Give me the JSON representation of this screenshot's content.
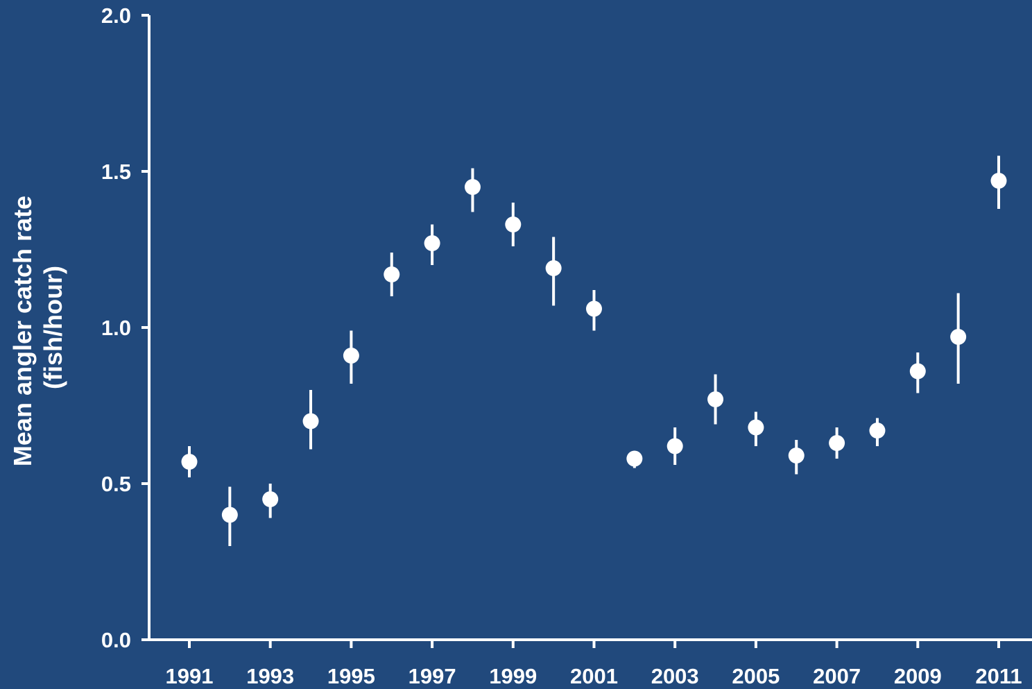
{
  "colors": {
    "background": "#21497c",
    "foreground": "#ffffff"
  },
  "chart_data": {
    "type": "scatter",
    "title": "",
    "xlabel": "",
    "ylabel_lines": [
      "Mean angler catch rate",
      "(fish/hour)"
    ],
    "xlim": [
      1990.6,
      2011.8
    ],
    "ylim": [
      0,
      2.0
    ],
    "x_ticks": [
      1991,
      1993,
      1995,
      1997,
      1999,
      2001,
      2003,
      2005,
      2007,
      2009,
      2011
    ],
    "x_tick_labels": [
      "1991",
      "1993",
      "1995",
      "1997",
      "1999",
      "2001",
      "2003",
      "2005",
      "2007",
      "2009",
      "2011"
    ],
    "y_ticks": [
      0.0,
      0.5,
      1.0,
      1.5,
      2.0
    ],
    "y_tick_labels": [
      "0.0",
      "0.5",
      "1.0",
      "1.5",
      "2.0"
    ],
    "grid": false,
    "legend": "none",
    "error_bars": true,
    "points": [
      {
        "x": 1991,
        "y": 0.57,
        "low": 0.52,
        "high": 0.62
      },
      {
        "x": 1992,
        "y": 0.4,
        "low": 0.3,
        "high": 0.49
      },
      {
        "x": 1993,
        "y": 0.45,
        "low": 0.39,
        "high": 0.5
      },
      {
        "x": 1994,
        "y": 0.7,
        "low": 0.61,
        "high": 0.8
      },
      {
        "x": 1995,
        "y": 0.91,
        "low": 0.82,
        "high": 0.99
      },
      {
        "x": 1996,
        "y": 1.17,
        "low": 1.1,
        "high": 1.24
      },
      {
        "x": 1997,
        "y": 1.27,
        "low": 1.2,
        "high": 1.33
      },
      {
        "x": 1998,
        "y": 1.45,
        "low": 1.37,
        "high": 1.51
      },
      {
        "x": 1999,
        "y": 1.33,
        "low": 1.26,
        "high": 1.4
      },
      {
        "x": 2000,
        "y": 1.19,
        "low": 1.07,
        "high": 1.29
      },
      {
        "x": 2001,
        "y": 1.06,
        "low": 0.99,
        "high": 1.12
      },
      {
        "x": 2002,
        "y": 0.58,
        "low": 0.55,
        "high": 0.6
      },
      {
        "x": 2003,
        "y": 0.62,
        "low": 0.56,
        "high": 0.68
      },
      {
        "x": 2004,
        "y": 0.77,
        "low": 0.69,
        "high": 0.85
      },
      {
        "x": 2005,
        "y": 0.68,
        "low": 0.62,
        "high": 0.73
      },
      {
        "x": 2006,
        "y": 0.59,
        "low": 0.53,
        "high": 0.64
      },
      {
        "x": 2007,
        "y": 0.63,
        "low": 0.58,
        "high": 0.68
      },
      {
        "x": 2008,
        "y": 0.67,
        "low": 0.62,
        "high": 0.71
      },
      {
        "x": 2009,
        "y": 0.86,
        "low": 0.79,
        "high": 0.92
      },
      {
        "x": 2010,
        "y": 0.97,
        "low": 0.82,
        "high": 1.11
      },
      {
        "x": 2011,
        "y": 1.47,
        "low": 1.38,
        "high": 1.55
      }
    ]
  }
}
